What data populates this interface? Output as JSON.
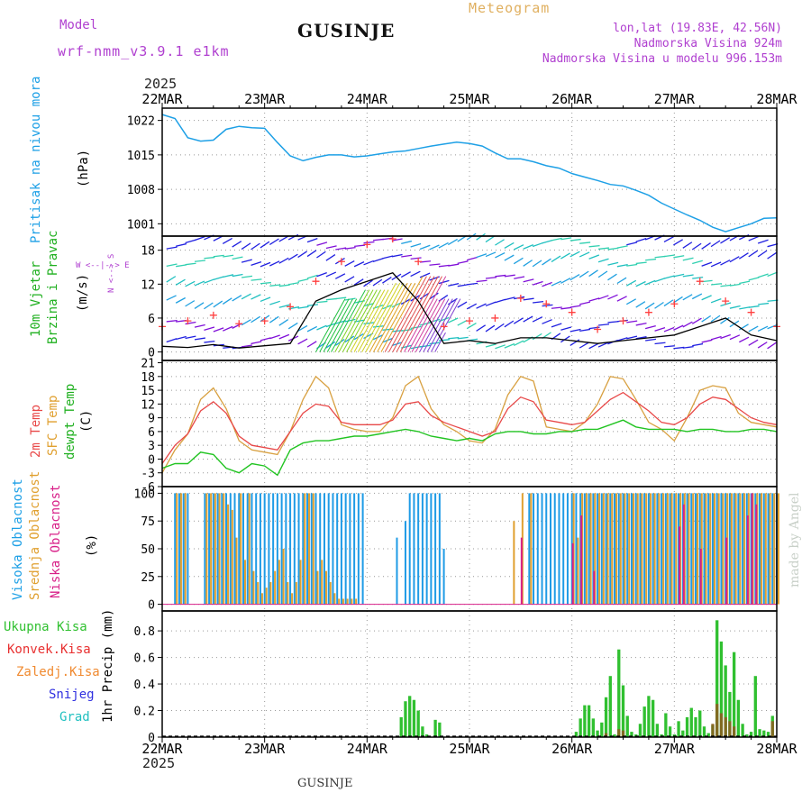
{
  "header": {
    "model_label": "Model",
    "model_name": "wrf-nmm_v3.9.1 e1km",
    "station": "GUSINJE",
    "meteogram_label": "Meteogram",
    "coords": "lon,lat (19.83E, 42.56N)",
    "altitude": "Nadmorska Visina 924m",
    "model_altitude": "Nadmorska Visina u modelu 996.153m",
    "footer_station": "GUSINJE",
    "watermark": "made by Angel",
    "year_top": "2025",
    "year_bottom": "2025"
  },
  "colors": {
    "pressure": "#1ea0e6",
    "temp2m": "#e84848",
    "sfctemp": "#d8a040",
    "dewpoint": "#22c422",
    "high_cloud": "#1e9be6",
    "mid_cloud": "#e0a030",
    "low_cloud": "#d82088",
    "total_precip": "#30c030",
    "conv_precip": "#e83030",
    "frozen_precip": "#f08a30",
    "snow": "#3030e0",
    "graupel": "#20c0c0",
    "wind_label": "#20b020",
    "direction_legend": "#b040d0",
    "gust": "#ff4040"
  },
  "x_axis": {
    "tick_labels": [
      "22MAR",
      "23MAR",
      "24MAR",
      "25MAR",
      "26MAR",
      "27MAR",
      "28MAR"
    ],
    "hours_total": 144
  },
  "panels": {
    "pressure": {
      "ylabel_left": "Pritisak na nivou mora",
      "unit": "(hPa)",
      "yticks": [
        1001,
        1008,
        1015,
        1022
      ],
      "ylim": [
        998.5,
        1024.5
      ]
    },
    "wind": {
      "ylabel_left_1": "10m Vjetar",
      "ylabel_left_2": "Brzina i Pravac",
      "unit": "(m/s)",
      "dir_legend_ns": "N <--> S",
      "dir_legend_we": "W <--|--> E",
      "yticks": [
        0,
        6,
        12,
        18
      ],
      "ylim": [
        -1.5,
        20.5
      ]
    },
    "temperature": {
      "label_2m": "2m Temp",
      "label_sfc": "SFC Temp",
      "label_dew": "dewpt Temp",
      "unit": "(C)",
      "yticks": [
        -6,
        -3,
        0,
        3,
        6,
        9,
        12,
        15,
        18,
        21
      ],
      "ylim": [
        -6,
        21.5
      ]
    },
    "cloud": {
      "label_high": "Visoka Oblacnost",
      "label_mid": "Srednja Oblacnost",
      "label_low": "Niska Oblacnost",
      "unit": "(%)",
      "yticks": [
        0,
        25,
        50,
        75,
        100
      ],
      "ylim": [
        -6,
        106
      ]
    },
    "precip": {
      "label_total": "Ukupna Kisa",
      "label_conv": "Konvek.Kisa",
      "label_frozen": "Zaledj.Kisa",
      "label_snow": "Snijeg",
      "label_grad": "Grad",
      "unit": "1hr Precip (mm)",
      "yticks": [
        0,
        0.2,
        0.4,
        0.6,
        0.8
      ],
      "ylim": [
        0,
        0.95
      ]
    }
  },
  "chart_data": {
    "type": "line",
    "x_unit": "hours since 22MAR 00Z",
    "pressure_hpa": {
      "x": [
        0,
        3,
        6,
        9,
        12,
        15,
        18,
        21,
        24,
        27,
        30,
        33,
        36,
        39,
        42,
        45,
        48,
        51,
        54,
        57,
        60,
        63,
        66,
        69,
        72,
        75,
        78,
        81,
        84,
        87,
        90,
        93,
        96,
        99,
        102,
        105,
        108,
        111,
        114,
        117,
        120,
        123,
        126,
        129,
        132,
        135,
        138,
        141,
        144
      ],
      "y": [
        1023.2,
        1022.4,
        1018.5,
        1017.8,
        1018.0,
        1020.2,
        1020.8,
        1020.5,
        1020.4,
        1017.5,
        1014.8,
        1013.8,
        1014.5,
        1015.0,
        1015.0,
        1014.6,
        1014.8,
        1015.2,
        1015.6,
        1015.8,
        1016.3,
        1016.8,
        1017.2,
        1017.6,
        1017.3,
        1016.8,
        1015.4,
        1014.2,
        1014.2,
        1013.6,
        1012.8,
        1012.3,
        1011.2,
        1010.5,
        1009.8,
        1009.0,
        1008.7,
        1007.8,
        1006.8,
        1005.2,
        1004.0,
        1002.8,
        1001.7,
        1000.3,
        999.4,
        1000.2,
        1001.0,
        1002.1,
        1002.2
      ]
    },
    "wind_speed_ms": {
      "x": [
        0,
        6,
        12,
        18,
        24,
        30,
        36,
        42,
        48,
        54,
        60,
        66,
        72,
        78,
        84,
        90,
        96,
        102,
        108,
        114,
        120,
        126,
        132,
        138,
        144
      ],
      "y": [
        1.0,
        0.8,
        1.3,
        0.7,
        1.1,
        1.5,
        9.0,
        11.0,
        12.5,
        14.0,
        9.0,
        1.5,
        2.0,
        1.5,
        2.5,
        2.5,
        2.0,
        1.5,
        2.0,
        2.5,
        3.0,
        4.5,
        6.0,
        3.0,
        2.0
      ]
    },
    "wind_gust_ms": {
      "x": [
        0,
        6,
        12,
        18,
        24,
        30,
        36,
        42,
        48,
        54,
        60,
        66,
        72,
        78,
        84,
        90,
        96,
        102,
        108,
        114,
        120,
        126,
        132,
        138,
        144
      ],
      "y": [
        4.5,
        5.5,
        6.5,
        5.0,
        5.5,
        8.0,
        12.5,
        16.0,
        19.0,
        20.0,
        16.0,
        4.5,
        5.5,
        6.0,
        9.5,
        8.5,
        7.0,
        4.0,
        5.5,
        7.0,
        8.5,
        12.5,
        9.0,
        7.0,
        4.5
      ]
    },
    "temp2m_c": {
      "x": [
        0,
        3,
        6,
        9,
        12,
        15,
        18,
        21,
        24,
        27,
        30,
        33,
        36,
        39,
        42,
        45,
        48,
        51,
        54,
        57,
        60,
        63,
        66,
        69,
        72,
        75,
        78,
        81,
        84,
        87,
        90,
        93,
        96,
        99,
        102,
        105,
        108,
        111,
        114,
        117,
        120,
        123,
        126,
        129,
        132,
        135,
        138,
        141,
        144
      ],
      "y": [
        -1.0,
        3.0,
        5.5,
        10.5,
        12.5,
        10.0,
        5.0,
        3.0,
        2.5,
        2.0,
        6.0,
        10.0,
        12.0,
        11.5,
        8.0,
        7.5,
        7.5,
        7.5,
        8.5,
        12.0,
        12.5,
        9.5,
        8.0,
        7.0,
        6.0,
        5.0,
        6.0,
        11.0,
        13.5,
        12.5,
        8.5,
        8.0,
        7.5,
        8.0,
        10.5,
        13.0,
        14.5,
        12.5,
        10.5,
        8.0,
        7.5,
        9.0,
        12.0,
        13.5,
        13.0,
        11.0,
        9.0,
        8.0,
        7.5
      ]
    },
    "sfctemp_c": {
      "x": [
        0,
        3,
        6,
        9,
        12,
        15,
        18,
        21,
        24,
        27,
        30,
        33,
        36,
        39,
        42,
        45,
        48,
        51,
        54,
        57,
        60,
        63,
        66,
        69,
        72,
        75,
        78,
        81,
        84,
        87,
        90,
        93,
        96,
        99,
        102,
        105,
        108,
        111,
        114,
        117,
        120,
        123,
        126,
        129,
        132,
        135,
        138,
        141,
        144
      ],
      "y": [
        -3.0,
        2.0,
        5.5,
        13.0,
        15.5,
        11.0,
        4.0,
        2.0,
        1.5,
        1.0,
        6.0,
        13.0,
        18.0,
        15.5,
        7.5,
        6.5,
        6.0,
        6.0,
        9.0,
        16.0,
        18.0,
        11.0,
        7.5,
        6.0,
        4.0,
        3.5,
        6.5,
        14.0,
        18.0,
        17.0,
        7.0,
        6.5,
        6.0,
        8.0,
        12.0,
        18.0,
        17.5,
        13.0,
        8.0,
        6.5,
        4.0,
        9.0,
        15.0,
        16.0,
        15.5,
        10.0,
        8.0,
        7.5,
        7.0
      ]
    },
    "dewpoint_c": {
      "x": [
        0,
        3,
        6,
        9,
        12,
        15,
        18,
        21,
        24,
        27,
        30,
        33,
        36,
        39,
        42,
        45,
        48,
        51,
        54,
        57,
        60,
        63,
        66,
        69,
        72,
        75,
        78,
        81,
        84,
        87,
        90,
        93,
        96,
        99,
        102,
        105,
        108,
        111,
        114,
        117,
        120,
        123,
        126,
        129,
        132,
        135,
        138,
        141,
        144
      ],
      "y": [
        -2.0,
        -1.0,
        -1.0,
        1.5,
        1.0,
        -2.0,
        -3.0,
        -1.0,
        -1.5,
        -3.5,
        2.0,
        3.5,
        4.0,
        4.0,
        4.5,
        5.0,
        5.0,
        5.5,
        6.0,
        6.5,
        6.0,
        5.0,
        4.5,
        4.0,
        4.5,
        4.0,
        5.5,
        6.0,
        6.0,
        5.5,
        5.5,
        6.0,
        6.0,
        6.5,
        6.5,
        7.5,
        8.5,
        7.0,
        6.5,
        6.5,
        6.5,
        6.0,
        6.5,
        6.5,
        6.0,
        6.0,
        6.5,
        6.5,
        6.0
      ]
    },
    "cloud_high_pct": {
      "x": [
        3,
        4,
        5,
        6,
        10,
        11,
        12,
        13,
        14,
        15,
        16,
        17,
        18,
        19,
        20,
        21,
        22,
        23,
        24,
        25,
        26,
        27,
        28,
        29,
        30,
        31,
        32,
        33,
        34,
        35,
        36,
        37,
        38,
        39,
        40,
        41,
        42,
        43,
        44,
        45,
        46,
        47,
        55,
        57,
        58,
        59,
        60,
        61,
        62,
        63,
        64,
        65,
        66,
        86,
        87,
        88,
        89,
        90,
        91,
        92,
        93,
        94,
        95,
        96,
        97,
        98,
        99,
        100,
        101,
        102,
        103,
        104,
        105,
        106,
        107,
        108,
        109,
        110,
        111,
        112,
        113,
        114,
        115,
        116,
        117,
        118,
        119,
        120,
        121,
        122,
        123,
        124,
        125,
        126,
        127,
        128,
        129,
        130,
        131,
        132,
        133,
        134,
        135,
        136,
        137,
        138,
        139,
        140,
        141,
        142,
        143,
        144
      ],
      "y": [
        100,
        100,
        100,
        100,
        100,
        100,
        100,
        100,
        100,
        100,
        100,
        100,
        100,
        100,
        100,
        100,
        100,
        100,
        100,
        100,
        100,
        100,
        100,
        100,
        100,
        100,
        100,
        100,
        100,
        100,
        100,
        100,
        100,
        100,
        100,
        100,
        100,
        100,
        100,
        100,
        100,
        100,
        60,
        75,
        100,
        100,
        100,
        100,
        100,
        100,
        100,
        100,
        50,
        100,
        100,
        100,
        100,
        100,
        100,
        100,
        100,
        100,
        100,
        100,
        100,
        100,
        100,
        100,
        100,
        100,
        100,
        100,
        100,
        100,
        100,
        100,
        100,
        100,
        100,
        100,
        100,
        100,
        100,
        100,
        100,
        100,
        100,
        100,
        100,
        100,
        100,
        100,
        100,
        100,
        100,
        100,
        100,
        100,
        100,
        100,
        100,
        100,
        100,
        100,
        100,
        100,
        100,
        100,
        100,
        100,
        100,
        100
      ]
    },
    "cloud_mid_pct": {
      "x": [
        3,
        4,
        5,
        10,
        11,
        12,
        13,
        14,
        15,
        16,
        17,
        18,
        19,
        20,
        21,
        22,
        23,
        24,
        25,
        26,
        27,
        28,
        29,
        30,
        31,
        32,
        33,
        34,
        35,
        36,
        37,
        38,
        39,
        40,
        41,
        42,
        43,
        44,
        45,
        46,
        47,
        82,
        84,
        86,
        96,
        97,
        98,
        99,
        100,
        101,
        102,
        103,
        104,
        105,
        106,
        107,
        108,
        109,
        110,
        111,
        112,
        113,
        114,
        115,
        116,
        117,
        118,
        119,
        120,
        121,
        122,
        123,
        124,
        125,
        126,
        127,
        128,
        129,
        130,
        131,
        132,
        133,
        134,
        135,
        136,
        137,
        138,
        139,
        140,
        141,
        142,
        143,
        144
      ],
      "y": [
        100,
        100,
        100,
        100,
        100,
        100,
        100,
        100,
        90,
        85,
        60,
        100,
        40,
        100,
        30,
        20,
        10,
        15,
        20,
        30,
        40,
        50,
        20,
        10,
        20,
        40,
        100,
        100,
        100,
        30,
        40,
        30,
        20,
        10,
        5,
        5,
        5,
        5,
        5,
        0,
        0,
        75,
        100,
        100,
        100,
        60,
        100,
        100,
        100,
        100,
        100,
        100,
        100,
        100,
        100,
        100,
        100,
        100,
        100,
        100,
        100,
        100,
        100,
        100,
        100,
        100,
        100,
        100,
        100,
        100,
        100,
        100,
        100,
        100,
        100,
        100,
        100,
        100,
        100,
        100,
        100,
        100,
        100,
        100,
        100,
        100,
        100,
        100,
        100,
        100,
        100,
        100,
        100
      ]
    },
    "cloud_low_pct": {
      "x": [
        84,
        96,
        98,
        101,
        121,
        122,
        126,
        132,
        137,
        138,
        139
      ],
      "y": [
        60,
        55,
        80,
        30,
        70,
        90,
        50,
        60,
        80,
        100,
        90
      ]
    },
    "precip_total_mm": {
      "x": [
        56,
        57,
        58,
        59,
        60,
        61,
        62,
        64,
        65,
        97,
        98,
        99,
        100,
        101,
        102,
        103,
        104,
        105,
        106,
        107,
        108,
        109,
        110,
        111,
        112,
        113,
        114,
        115,
        116,
        117,
        118,
        119,
        120,
        121,
        122,
        123,
        124,
        125,
        126,
        127,
        128,
        129,
        130,
        131,
        132,
        133,
        134,
        135,
        136,
        137,
        138,
        139,
        140,
        141,
        142,
        143
      ],
      "y": [
        0.15,
        0.27,
        0.31,
        0.28,
        0.2,
        0.08,
        0.02,
        0.13,
        0.11,
        0.04,
        0.14,
        0.24,
        0.24,
        0.14,
        0.05,
        0.11,
        0.3,
        0.46,
        0.02,
        0.66,
        0.39,
        0.16,
        0.04,
        0.02,
        0.1,
        0.23,
        0.31,
        0.28,
        0.1,
        0.02,
        0.18,
        0.08,
        0.02,
        0.12,
        0.05,
        0.15,
        0.22,
        0.15,
        0.2,
        0.08,
        0.03,
        0.09,
        0.88,
        0.72,
        0.54,
        0.34,
        0.64,
        0.28,
        0.1,
        0.02,
        0.04,
        0.46,
        0.06,
        0.05,
        0.04,
        0.16
      ]
    },
    "precip_conv_mm": {
      "x": [
        104,
        107,
        108,
        129,
        130,
        131,
        132,
        133,
        134,
        143
      ],
      "y": [
        0.03,
        0.06,
        0.05,
        0.1,
        0.25,
        0.18,
        0.15,
        0.12,
        0.08,
        0.12
      ]
    }
  }
}
